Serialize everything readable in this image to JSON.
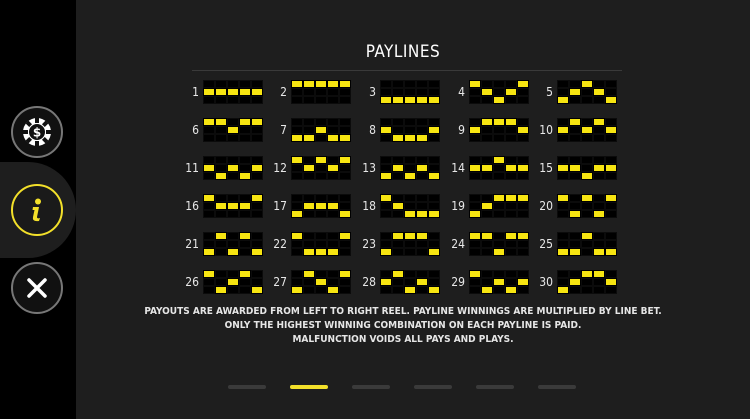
{
  "title": "PAYLINES",
  "sidebar": {
    "buttons": [
      {
        "name": "paytable-button",
        "icon": "casino-chip-icon",
        "active": false
      },
      {
        "name": "info-button",
        "icon": "info-icon",
        "active": true
      },
      {
        "name": "close-button",
        "icon": "close-icon",
        "active": false
      }
    ]
  },
  "colors": {
    "accent": "#f3e02a",
    "line_cell": "#f7e511",
    "background": "#1e1e1e",
    "sidebar": "#000000"
  },
  "paylines": [
    {
      "n": "1",
      "rows": [
        1,
        1,
        1,
        1,
        1
      ]
    },
    {
      "n": "2",
      "rows": [
        0,
        0,
        0,
        0,
        0
      ]
    },
    {
      "n": "3",
      "rows": [
        2,
        2,
        2,
        2,
        2
      ]
    },
    {
      "n": "4",
      "rows": [
        0,
        1,
        2,
        1,
        0
      ]
    },
    {
      "n": "5",
      "rows": [
        2,
        1,
        0,
        1,
        2
      ]
    },
    {
      "n": "6",
      "rows": [
        0,
        0,
        1,
        0,
        0
      ]
    },
    {
      "n": "7",
      "rows": [
        2,
        2,
        1,
        2,
        2
      ]
    },
    {
      "n": "8",
      "rows": [
        1,
        2,
        2,
        2,
        1
      ]
    },
    {
      "n": "9",
      "rows": [
        1,
        0,
        0,
        0,
        1
      ]
    },
    {
      "n": "10",
      "rows": [
        1,
        0,
        1,
        0,
        1
      ]
    },
    {
      "n": "11",
      "rows": [
        1,
        2,
        1,
        2,
        1
      ]
    },
    {
      "n": "12",
      "rows": [
        0,
        1,
        0,
        1,
        0
      ]
    },
    {
      "n": "13",
      "rows": [
        2,
        1,
        2,
        1,
        2
      ]
    },
    {
      "n": "14",
      "rows": [
        1,
        1,
        0,
        1,
        1
      ]
    },
    {
      "n": "15",
      "rows": [
        1,
        1,
        2,
        1,
        1
      ]
    },
    {
      "n": "16",
      "rows": [
        0,
        1,
        1,
        1,
        0
      ]
    },
    {
      "n": "17",
      "rows": [
        2,
        1,
        1,
        1,
        2
      ]
    },
    {
      "n": "18",
      "rows": [
        0,
        1,
        2,
        2,
        2
      ]
    },
    {
      "n": "19",
      "rows": [
        2,
        1,
        0,
        0,
        0
      ]
    },
    {
      "n": "20",
      "rows": [
        0,
        2,
        0,
        2,
        0
      ]
    },
    {
      "n": "21",
      "rows": [
        2,
        0,
        2,
        0,
        2
      ]
    },
    {
      "n": "22",
      "rows": [
        0,
        2,
        2,
        2,
        0
      ]
    },
    {
      "n": "23",
      "rows": [
        2,
        0,
        0,
        0,
        2
      ]
    },
    {
      "n": "24",
      "rows": [
        0,
        0,
        2,
        0,
        0
      ]
    },
    {
      "n": "25",
      "rows": [
        2,
        2,
        0,
        2,
        2
      ]
    },
    {
      "n": "26",
      "rows": [
        0,
        2,
        1,
        0,
        2
      ]
    },
    {
      "n": "27",
      "rows": [
        2,
        0,
        1,
        2,
        0
      ]
    },
    {
      "n": "28",
      "rows": [
        1,
        0,
        2,
        1,
        2
      ]
    },
    {
      "n": "29",
      "rows": [
        0,
        2,
        1,
        2,
        1
      ]
    },
    {
      "n": "30",
      "rows": [
        2,
        1,
        0,
        0,
        1
      ]
    }
  ],
  "notes": [
    "PAYOUTS ARE AWARDED FROM LEFT  TO RIGHT REEL. PAYLINE WINNINGS ARE MULTIPLIED BY LINE BET.",
    "ONLY THE HIGHEST WINNING COMBINATION ON EACH PAYLINE IS PAID.",
    "MALFUNCTION VOIDS ALL PAYS AND PLAYS."
  ],
  "pagination": {
    "pages": 6,
    "current": 2
  }
}
